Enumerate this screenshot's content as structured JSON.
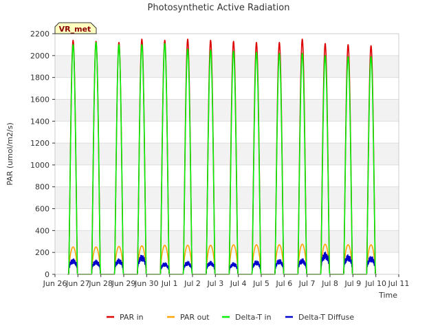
{
  "chart_data": {
    "type": "line",
    "title": "Photosynthetic Active Radiation",
    "xlabel": "Time",
    "ylabel": "PAR (umol/m2/s)",
    "site_label": "VR_met",
    "ylim": [
      0,
      2200
    ],
    "xlim": [
      0,
      15
    ],
    "yticks": [
      0,
      200,
      400,
      600,
      800,
      1000,
      1200,
      1400,
      1600,
      1800,
      2000,
      2200
    ],
    "xticks": [
      {
        "pos": 0,
        "label": "Jun 26"
      },
      {
        "pos": 1,
        "label": "Jun 27"
      },
      {
        "pos": 2,
        "label": "Jun 28"
      },
      {
        "pos": 3,
        "label": "Jun 29"
      },
      {
        "pos": 4,
        "label": "Jun 30"
      },
      {
        "pos": 5,
        "label": "Jul 1"
      },
      {
        "pos": 6,
        "label": "Jul 2"
      },
      {
        "pos": 7,
        "label": "Jul 3"
      },
      {
        "pos": 8,
        "label": "Jul 4"
      },
      {
        "pos": 9,
        "label": "Jul 5"
      },
      {
        "pos": 10,
        "label": "Jul 6"
      },
      {
        "pos": 11,
        "label": "Jul 7"
      },
      {
        "pos": 12,
        "label": "Jul 8"
      },
      {
        "pos": 13,
        "label": "Jul 9"
      },
      {
        "pos": 14,
        "label": "Jul 10"
      },
      {
        "pos": 15,
        "label": "Jul 11"
      }
    ],
    "day_starts": [
      0.6,
      1.6,
      2.6,
      3.6,
      4.6,
      5.6,
      6.6,
      7.6,
      8.6,
      9.6,
      10.6,
      11.6,
      12.6,
      13.6
    ],
    "day_length": 0.38,
    "series": [
      {
        "name": "PAR in",
        "color": "#dd0000",
        "peaks": [
          2140,
          2130,
          2120,
          2150,
          2140,
          2150,
          2140,
          2130,
          2120,
          2120,
          2150,
          2110,
          2100,
          2090
        ]
      },
      {
        "name": "PAR out",
        "color": "#ffa500",
        "peaks": [
          250,
          250,
          255,
          260,
          265,
          265,
          265,
          270,
          270,
          270,
          275,
          275,
          270,
          270
        ]
      },
      {
        "name": "Delta-T in",
        "color": "#00ee00",
        "peaks": [
          2100,
          2120,
          2100,
          2100,
          2110,
          2060,
          2050,
          2040,
          2030,
          2020,
          2020,
          2000,
          1990,
          1990
        ]
      },
      {
        "name": "Delta-T Diffuse",
        "color": "#0000cc",
        "peaks": [
          120,
          110,
          120,
          150,
          90,
          100,
          100,
          90,
          105,
          115,
          120,
          170,
          150,
          140
        ]
      }
    ]
  }
}
